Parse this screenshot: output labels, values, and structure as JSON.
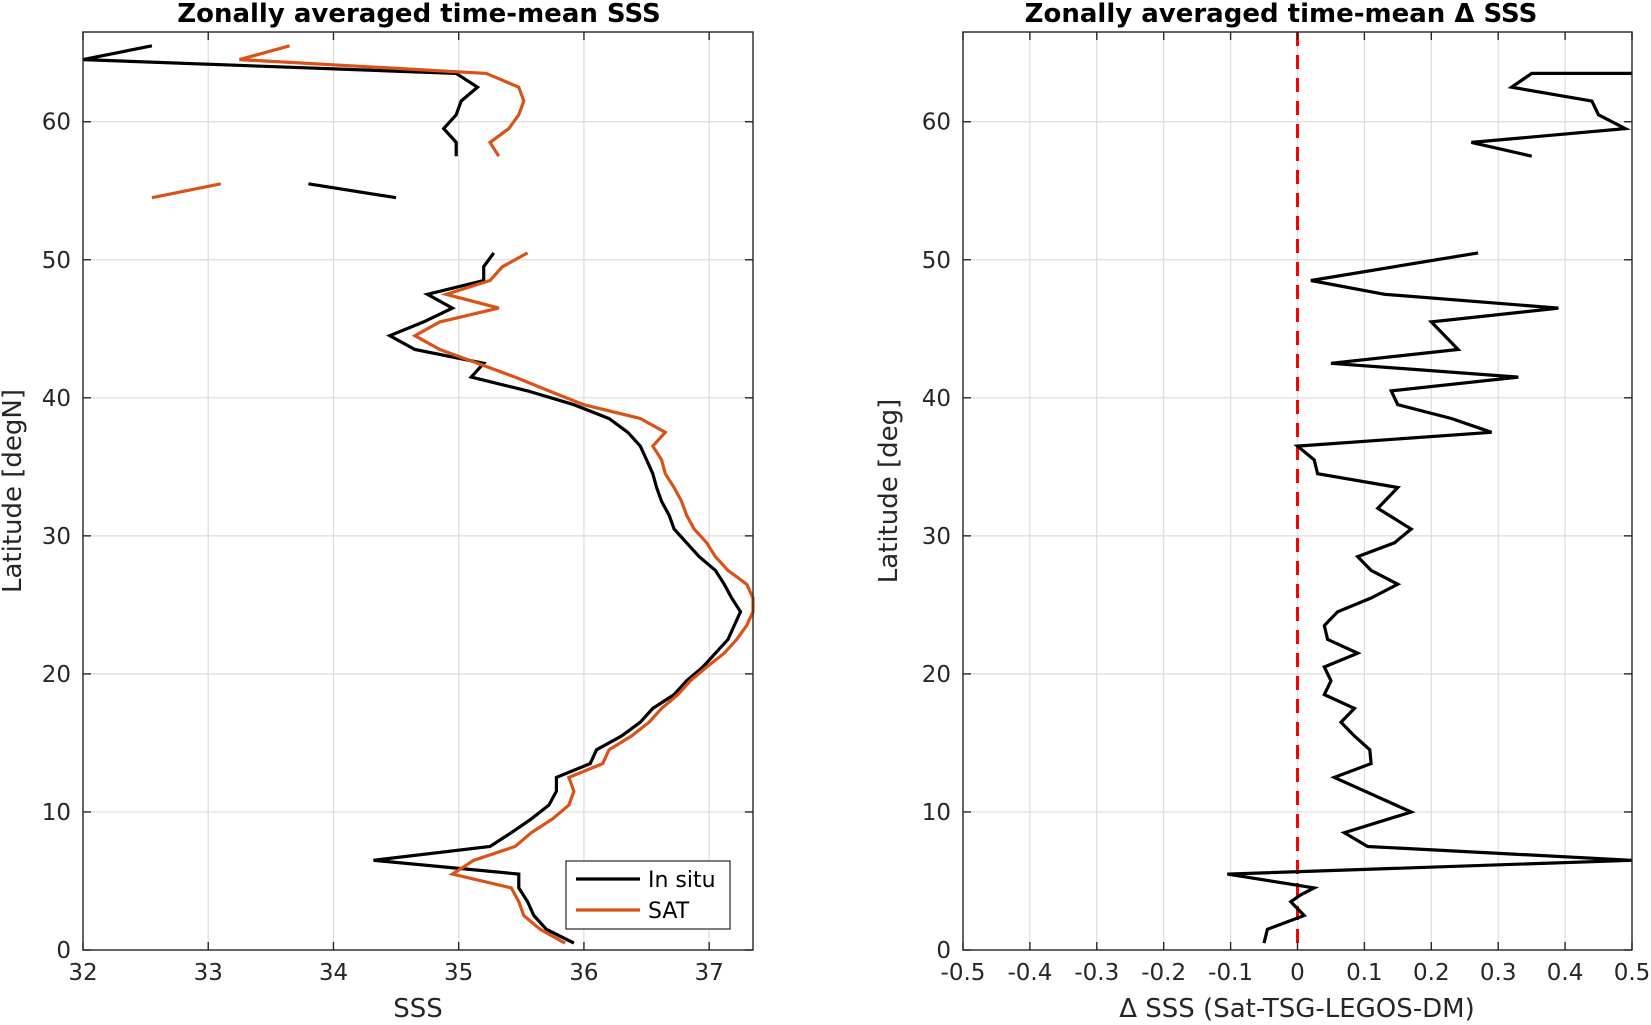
{
  "chart_data": [
    {
      "type": "line",
      "title": "Zonally averaged time-mean SSS",
      "xlabel": "SSS",
      "ylabel": "Latitude [degN]",
      "xlim": [
        32,
        37.35
      ],
      "ylim": [
        0,
        66.5
      ],
      "xticks": [
        32,
        33,
        34,
        35,
        36,
        37
      ],
      "yticks": [
        0,
        10,
        20,
        30,
        40,
        50,
        60
      ],
      "grid": true,
      "legend": "bottom-right",
      "series": [
        {
          "name": "In situ",
          "color": "#000000",
          "segments": [
            [
              [
                35.92,
                0.5
              ],
              [
                35.7,
                1.5
              ],
              [
                35.6,
                2.5
              ],
              [
                35.55,
                3.5
              ],
              [
                35.48,
                4.5
              ],
              [
                35.48,
                5.5
              ],
              [
                34.32,
                6.5
              ],
              [
                35.25,
                7.5
              ],
              [
                35.42,
                8.5
              ],
              [
                35.58,
                9.5
              ],
              [
                35.72,
                10.5
              ],
              [
                35.78,
                11.5
              ],
              [
                35.78,
                12.5
              ],
              [
                36.05,
                13.5
              ],
              [
                36.1,
                14.5
              ],
              [
                36.3,
                15.5
              ],
              [
                36.45,
                16.5
              ],
              [
                36.55,
                17.5
              ],
              [
                36.72,
                18.5
              ],
              [
                36.82,
                19.5
              ],
              [
                36.95,
                20.5
              ],
              [
                37.05,
                21.5
              ],
              [
                37.15,
                22.5
              ],
              [
                37.2,
                23.5
              ],
              [
                37.25,
                24.5
              ],
              [
                37.18,
                25.5
              ],
              [
                37.12,
                26.5
              ],
              [
                37.05,
                27.5
              ],
              [
                36.92,
                28.5
              ],
              [
                36.82,
                29.5
              ],
              [
                36.72,
                30.5
              ],
              [
                36.68,
                31.5
              ],
              [
                36.62,
                32.5
              ],
              [
                36.58,
                33.5
              ],
              [
                36.55,
                34.5
              ],
              [
                36.5,
                35.5
              ],
              [
                36.45,
                36.5
              ],
              [
                36.35,
                37.5
              ],
              [
                36.2,
                38.5
              ],
              [
                35.92,
                39.5
              ],
              [
                35.55,
                40.5
              ],
              [
                35.1,
                41.5
              ],
              [
                35.2,
                42.5
              ],
              [
                34.65,
                43.5
              ],
              [
                34.45,
                44.5
              ],
              [
                34.72,
                45.5
              ],
              [
                34.95,
                46.5
              ],
              [
                34.75,
                47.5
              ],
              [
                35.2,
                48.5
              ],
              [
                35.2,
                49.5
              ],
              [
                35.28,
                50.5
              ]
            ],
            [
              [
                33.8,
                55.5
              ],
              [
                34.5,
                54.5
              ]
            ],
            [
              [
                34.98,
                57.5
              ],
              [
                34.98,
                58.5
              ],
              [
                34.88,
                59.5
              ],
              [
                34.98,
                60.5
              ],
              [
                35.02,
                61.5
              ],
              [
                35.15,
                62.5
              ],
              [
                34.98,
                63.5
              ],
              [
                31.9,
                64.5
              ],
              [
                32.55,
                65.5
              ]
            ]
          ]
        },
        {
          "name": "SAT",
          "color": "#D95319",
          "segments": [
            [
              [
                35.85,
                0.5
              ],
              [
                35.65,
                1.5
              ],
              [
                35.52,
                2.5
              ],
              [
                35.48,
                3.5
              ],
              [
                35.42,
                4.5
              ],
              [
                34.95,
                5.5
              ],
              [
                35.12,
                6.5
              ],
              [
                35.45,
                7.5
              ],
              [
                35.58,
                8.5
              ],
              [
                35.75,
                9.5
              ],
              [
                35.88,
                10.5
              ],
              [
                35.92,
                11.5
              ],
              [
                35.88,
                12.5
              ],
              [
                36.15,
                13.5
              ],
              [
                36.2,
                14.5
              ],
              [
                36.38,
                15.5
              ],
              [
                36.52,
                16.5
              ],
              [
                36.62,
                17.5
              ],
              [
                36.75,
                18.5
              ],
              [
                36.85,
                19.5
              ],
              [
                36.98,
                20.5
              ],
              [
                37.12,
                21.5
              ],
              [
                37.22,
                22.5
              ],
              [
                37.3,
                23.5
              ],
              [
                37.35,
                24.5
              ],
              [
                37.35,
                25.5
              ],
              [
                37.3,
                26.5
              ],
              [
                37.15,
                27.5
              ],
              [
                37.05,
                28.5
              ],
              [
                36.98,
                29.5
              ],
              [
                36.88,
                30.5
              ],
              [
                36.82,
                31.5
              ],
              [
                36.78,
                32.5
              ],
              [
                36.72,
                33.5
              ],
              [
                36.65,
                34.5
              ],
              [
                36.62,
                35.5
              ],
              [
                36.55,
                36.5
              ],
              [
                36.65,
                37.5
              ],
              [
                36.45,
                38.5
              ],
              [
                36.0,
                39.5
              ],
              [
                35.72,
                40.5
              ],
              [
                35.45,
                41.5
              ],
              [
                35.15,
                42.5
              ],
              [
                34.85,
                43.5
              ],
              [
                34.65,
                44.5
              ],
              [
                34.85,
                45.5
              ],
              [
                35.32,
                46.5
              ],
              [
                34.9,
                47.5
              ],
              [
                35.25,
                48.5
              ],
              [
                35.35,
                49.5
              ],
              [
                35.55,
                50.5
              ]
            ],
            [
              [
                32.55,
                54.5
              ],
              [
                33.1,
                55.5
              ]
            ],
            [
              [
                35.32,
                57.5
              ],
              [
                35.25,
                58.5
              ],
              [
                35.4,
                59.5
              ],
              [
                35.48,
                60.5
              ],
              [
                35.52,
                61.5
              ],
              [
                35.48,
                62.5
              ],
              [
                35.22,
                63.5
              ],
              [
                33.25,
                64.5
              ],
              [
                33.65,
                65.5
              ]
            ]
          ]
        }
      ]
    },
    {
      "type": "line",
      "title": "Zonally averaged time-mean Δ SSS",
      "xlabel": "Δ SSS (Sat-TSG-LEGOS-DM)",
      "ylabel": "Latitude [deg]",
      "xlim": [
        -0.5,
        0.5
      ],
      "ylim": [
        0,
        66.5
      ],
      "xticks": [
        -0.5,
        -0.4,
        -0.3,
        -0.2,
        -0.1,
        0,
        0.1,
        0.2,
        0.3,
        0.4,
        0.5
      ],
      "xticklabels": [
        "-0.5",
        "-0.4",
        "-0.3",
        "-0.2",
        "-0.1",
        "0",
        "0.1",
        "0.2",
        "0.3",
        "0.4",
        "0.5"
      ],
      "yticks": [
        0,
        10,
        20,
        30,
        40,
        50,
        60
      ],
      "grid": true,
      "reference_line": {
        "x": 0,
        "color": "#FF0000",
        "style": "dashed"
      },
      "series": [
        {
          "color": "#000000",
          "segments": [
            [
              [
                -0.05,
                0.5
              ],
              [
                -0.045,
                1.5
              ],
              [
                0.01,
                2.5
              ],
              [
                -0.01,
                3.5
              ],
              [
                0.005,
                4.0
              ],
              [
                0.025,
                4.5
              ],
              [
                -0.105,
                5.5
              ],
              [
                0.5,
                6.5
              ],
              [
                0.105,
                7.5
              ],
              [
                0.07,
                8.5
              ],
              [
                0.17,
                10.0
              ],
              [
                0.055,
                12.5
              ],
              [
                0.11,
                13.5
              ],
              [
                0.108,
                14.5
              ],
              [
                0.085,
                15.5
              ],
              [
                0.065,
                16.5
              ],
              [
                0.085,
                17.5
              ],
              [
                0.04,
                18.5
              ],
              [
                0.05,
                19.5
              ],
              [
                0.04,
                20.5
              ],
              [
                0.09,
                21.5
              ],
              [
                0.045,
                22.5
              ],
              [
                0.04,
                23.5
              ],
              [
                0.06,
                24.5
              ],
              [
                0.11,
                25.5
              ],
              [
                0.15,
                26.5
              ],
              [
                0.11,
                27.5
              ],
              [
                0.09,
                28.5
              ],
              [
                0.145,
                29.5
              ],
              [
                0.17,
                30.5
              ],
              [
                0.12,
                32.0
              ],
              [
                0.15,
                33.5
              ],
              [
                0.03,
                34.5
              ],
              [
                0.025,
                35.5
              ],
              [
                0.0,
                36.5
              ],
              [
                0.29,
                37.5
              ],
              [
                0.23,
                38.5
              ],
              [
                0.15,
                39.5
              ],
              [
                0.14,
                40.5
              ],
              [
                0.33,
                41.5
              ],
              [
                0.05,
                42.5
              ],
              [
                0.24,
                43.5
              ],
              [
                0.2,
                45.5
              ],
              [
                0.39,
                46.5
              ],
              [
                0.13,
                47.5
              ],
              [
                0.02,
                48.5
              ],
              [
                0.27,
                50.5
              ]
            ],
            [
              [
                0.35,
                57.5
              ],
              [
                0.26,
                58.5
              ],
              [
                0.49,
                59.5
              ],
              [
                0.45,
                60.5
              ],
              [
                0.44,
                61.5
              ],
              [
                0.32,
                62.5
              ],
              [
                0.35,
                63.5
              ],
              [
                0.5,
                63.5
              ]
            ]
          ]
        }
      ]
    }
  ],
  "legend": {
    "items": [
      {
        "label": "In situ",
        "color": "#000000"
      },
      {
        "label": "SAT",
        "color": "#D95319"
      }
    ]
  }
}
